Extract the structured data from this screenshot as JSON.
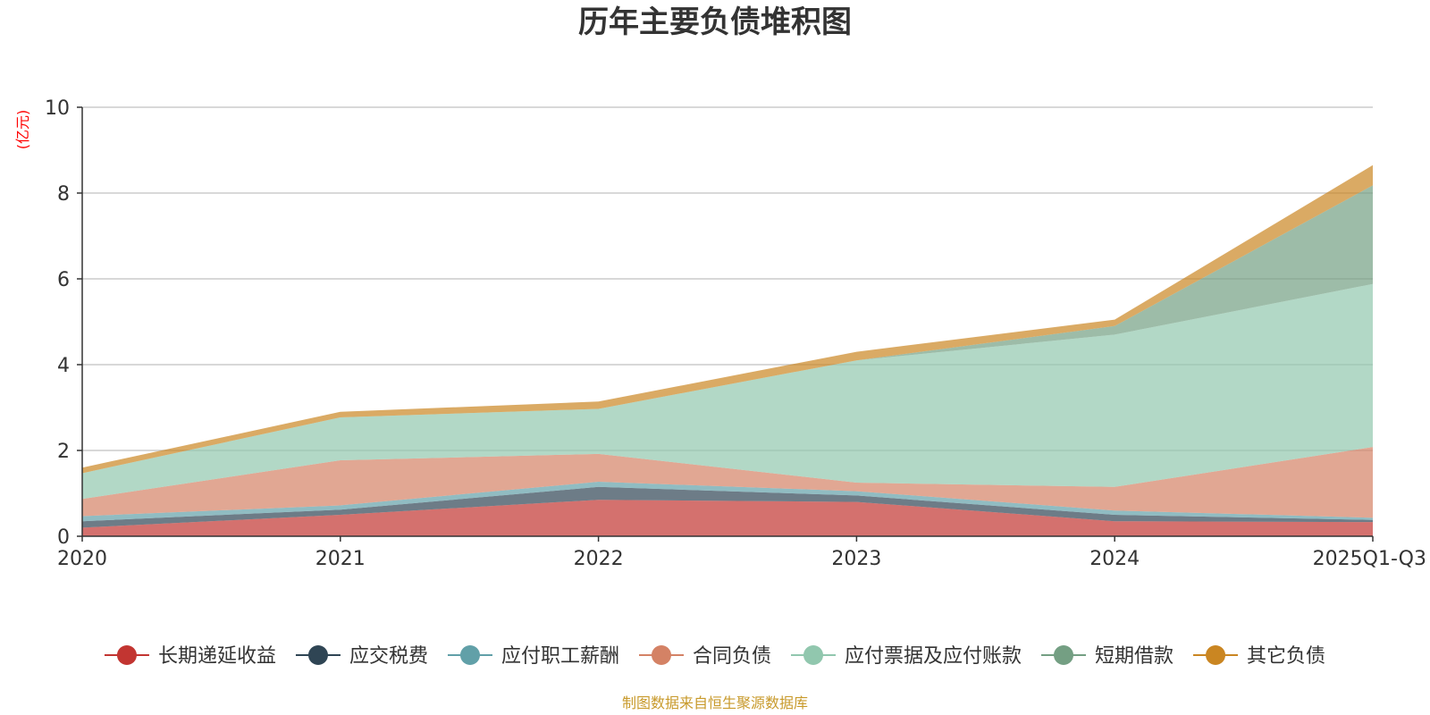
{
  "colors": {
    "long_term_deferred": "#c23531",
    "tax_payable": "#2f4554",
    "payroll_payable": "#61a0a8",
    "contract_liabilities": "#d48265",
    "notes_accounts_payable": "#91c7ae",
    "short_term_borrowing": "#749f83",
    "other_liabilities": "#ca8622",
    "unit_label": "#ff0000",
    "source_label": "#c89a2c"
  },
  "chart_data": {
    "type": "area",
    "stacked": true,
    "title": "历年主要负债堆积图",
    "unit": "(亿元)",
    "categories": [
      "2020",
      "2021",
      "2022",
      "2023",
      "2024",
      "2025Q1-Q3"
    ],
    "ylim": [
      0,
      10
    ],
    "yticks": [
      "0",
      "2",
      "4",
      "6",
      "8",
      "10"
    ],
    "series": [
      {
        "name": "长期递延收益",
        "color_key": "long_term_deferred",
        "values": [
          0.2,
          0.5,
          0.85,
          0.8,
          0.35,
          0.33
        ]
      },
      {
        "name": "应交税费",
        "color_key": "tax_payable",
        "values": [
          0.15,
          0.12,
          0.3,
          0.15,
          0.15,
          0.05
        ]
      },
      {
        "name": "应付职工薪酬",
        "color_key": "payroll_payable",
        "values": [
          0.12,
          0.1,
          0.12,
          0.1,
          0.1,
          0.05
        ]
      },
      {
        "name": "合同负债",
        "color_key": "contract_liabilities",
        "values": [
          0.4,
          1.05,
          0.65,
          0.2,
          0.55,
          1.65
        ]
      },
      {
        "name": "应付票据及应付账款",
        "color_key": "notes_accounts_payable",
        "values": [
          0.6,
          1.0,
          1.05,
          2.85,
          3.55,
          3.8
        ]
      },
      {
        "name": "短期借款",
        "color_key": "short_term_borrowing",
        "values": [
          0.0,
          0.0,
          0.0,
          0.0,
          0.2,
          2.3
        ]
      },
      {
        "name": "其它负债",
        "color_key": "other_liabilities",
        "values": [
          0.13,
          0.13,
          0.17,
          0.2,
          0.15,
          0.47
        ]
      }
    ]
  },
  "source_note": "制图数据来自恒生聚源数据库"
}
